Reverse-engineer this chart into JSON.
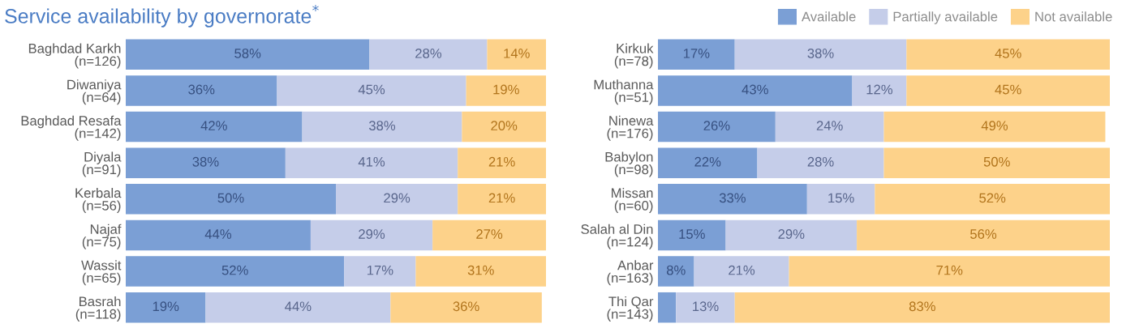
{
  "chart_data": [
    {
      "type": "bar",
      "orientation": "horizontal",
      "stacked": true,
      "title": "Service availability by governorate$^{*}$",
      "xlim": [
        0,
        100
      ],
      "tick_labels": "y",
      "grid": false,
      "legend": "top right",
      "categories": [
        "Baghdad Karkh\n(n=126)",
        "Diwaniya\n(n=64)",
        "Baghdad Resafa\n(n=142)",
        "Diyala\n(n=91)",
        "Kerbala\n(n=56)",
        "Najaf\n(n=75)",
        "Wassit\n(n=65)",
        "Basrah\n(n=118)"
      ],
      "series": [
        {
          "name": "Available",
          "color": "#7b9fd5",
          "values": [
            58,
            36,
            42,
            38,
            50,
            44,
            52,
            19
          ],
          "value_labels": [
            "58%",
            "36%",
            "42%",
            "38%",
            "50%",
            "44%",
            "52%",
            "19%"
          ]
        },
        {
          "name": "Partially available",
          "color": "#c5cde9",
          "values": [
            28,
            45,
            38,
            41,
            29,
            29,
            17,
            44
          ],
          "value_labels": [
            "28%",
            "45%",
            "38%",
            "41%",
            "29%",
            "29%",
            "17%",
            "44%"
          ]
        },
        {
          "name": "Not available",
          "color": "#fdd28a",
          "values": [
            14,
            19,
            20,
            21,
            21,
            27,
            31,
            36
          ],
          "value_labels": [
            "14%",
            "19%",
            "20%",
            "21%",
            "21%",
            "27%",
            "31%",
            "36%"
          ]
        }
      ]
    },
    {
      "type": "bar",
      "orientation": "horizontal",
      "stacked": true,
      "xlim": [
        0,
        100
      ],
      "tick_labels": "y",
      "grid": false,
      "categories": [
        "Kirkuk\n(n=78)",
        "Muthanna\n(n=51)",
        "Ninewa\n(n=176)",
        "Babylon\n(n=98)",
        "Missan\n(n=60)",
        "Salah al Din\n(n=124)",
        "Anbar\n(n=163)",
        "Thi Qar\n(n=143)"
      ],
      "series": [
        {
          "color": "#7b9fd5",
          "values": [
            17,
            43,
            26,
            22,
            33,
            15,
            8,
            4
          ],
          "value_labels": [
            "17%",
            "43%",
            "26%",
            "22%",
            "33%",
            "15%",
            "8%",
            null
          ]
        },
        {
          "color": "#c5cde9",
          "values": [
            38,
            12,
            24,
            28,
            15,
            29,
            21,
            13
          ],
          "value_labels": [
            "38%",
            "12%",
            "24%",
            "28%",
            "15%",
            "29%",
            "21%",
            "13%"
          ]
        },
        {
          "color": "#fdd28a",
          "values": [
            45,
            45,
            49,
            50,
            52,
            56,
            71,
            83
          ],
          "value_labels": [
            "45%",
            "45%",
            "49%",
            "50%",
            "52%",
            "56%",
            "71%",
            "83%"
          ]
        }
      ]
    }
  ]
}
